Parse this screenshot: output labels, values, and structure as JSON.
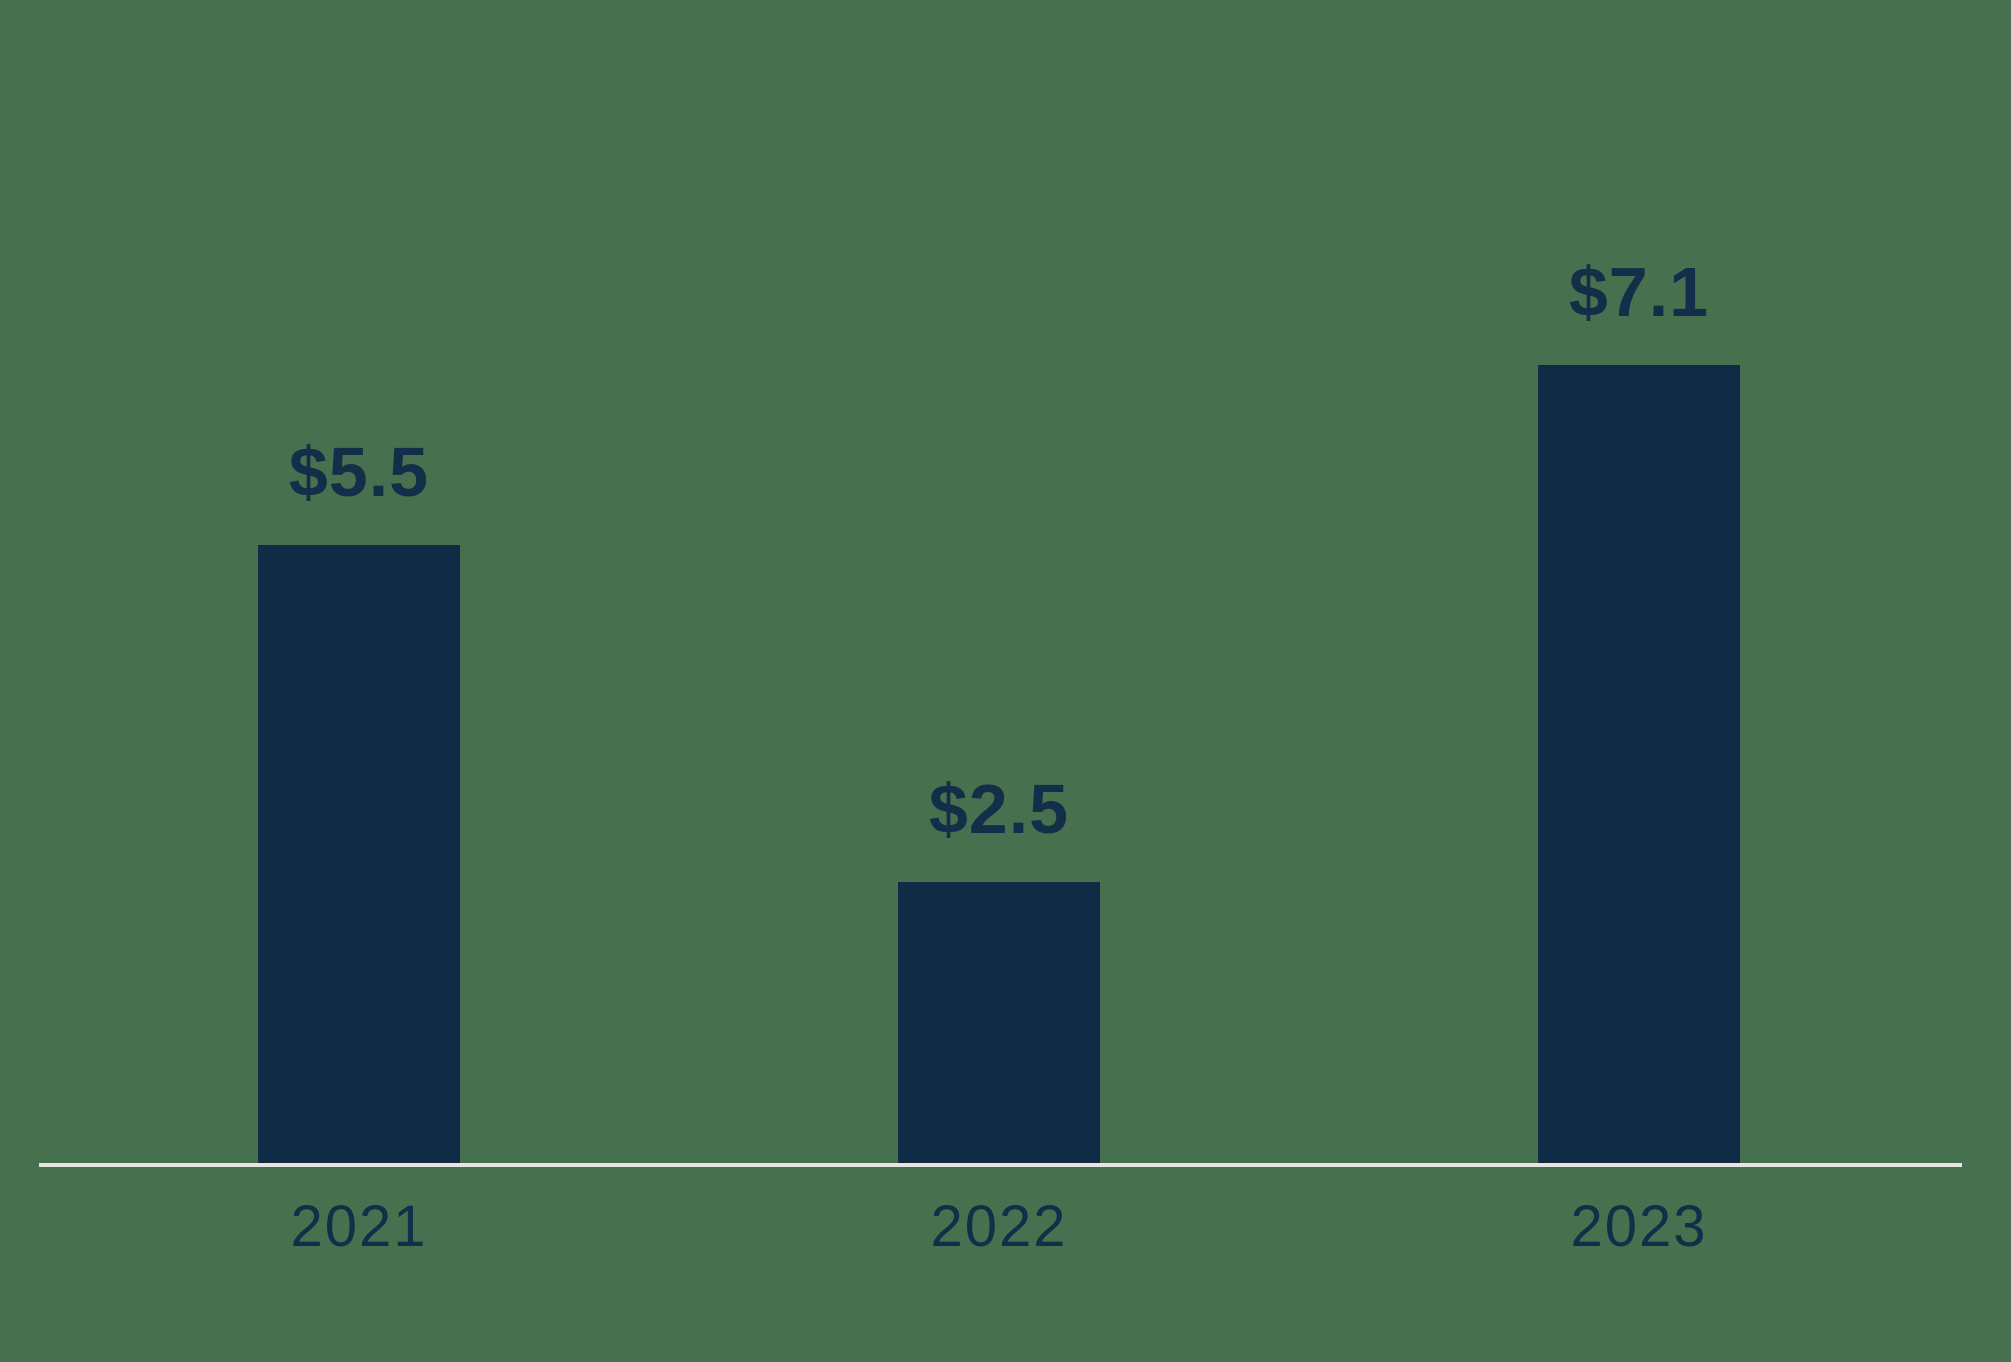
{
  "chart_data": {
    "type": "bar",
    "categories": [
      "2021",
      "2022",
      "2023"
    ],
    "values": [
      5.5,
      2.5,
      7.1
    ],
    "value_labels": [
      "$5.5",
      "$2.5",
      "$7.1"
    ],
    "title": "",
    "xlabel": "",
    "ylabel": "",
    "ylim": [
      0,
      7.1
    ],
    "grid": false,
    "legend": false,
    "layout_hints": {
      "bar_labels_position": "above-bars",
      "axis_line": "bottom-only",
      "legend_position": "none"
    },
    "colors": {
      "background": "#47714E",
      "bar": "#102B46",
      "text": "#132E49",
      "axis_line": "#E6E5E0"
    }
  }
}
